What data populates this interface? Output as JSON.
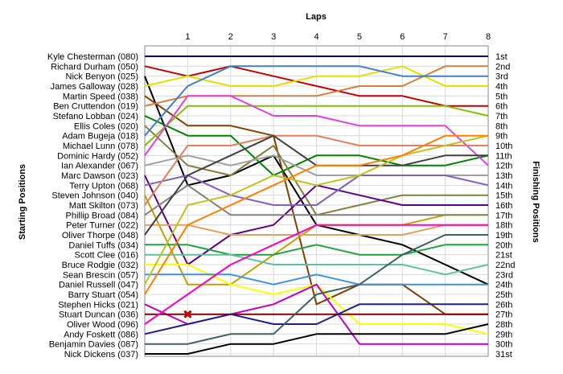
{
  "chart_data": {
    "type": "line",
    "title": "",
    "xlabel": "Laps",
    "ylabel_left": "Starting Positions",
    "ylabel_right": "Finishing Positions",
    "x": [
      0,
      1,
      2,
      3,
      4,
      5,
      6,
      7,
      8
    ],
    "x_tick_labels": [
      "1",
      "2",
      "3",
      "4",
      "5",
      "6",
      "7",
      "8"
    ],
    "ylim": [
      1,
      31
    ],
    "y_inverted": true,
    "grid": true,
    "finishing_labels": [
      "1st",
      "2nd",
      "3rd",
      "4th",
      "5th",
      "6th",
      "7th",
      "8th",
      "9th",
      "10th",
      "11th",
      "12th",
      "13th",
      "14th",
      "15th",
      "16th",
      "17th",
      "18th",
      "19th",
      "20th",
      "21st",
      "22nd",
      "23rd",
      "24th",
      "25th",
      "26th",
      "27th",
      "28th",
      "29th",
      "30th",
      "31st"
    ],
    "series": [
      {
        "name": "Kyle Chesterman (080)",
        "color": "#000080",
        "values": [
          1,
          1,
          1,
          1,
          1,
          1,
          1,
          1,
          1
        ]
      },
      {
        "name": "Richard Durham (050)",
        "color": "#c00000",
        "values": [
          2,
          3,
          2,
          3,
          4,
          5,
          5,
          6,
          6
        ]
      },
      {
        "name": "Nick Benyon (025)",
        "color": "#000000",
        "values": [
          3,
          14,
          13,
          11,
          18,
          19,
          20,
          22,
          24
        ]
      },
      {
        "name": "James Galloway (028)",
        "color": "#e0e000",
        "values": [
          4,
          3,
          4,
          4,
          3,
          3,
          2,
          4,
          4
        ]
      },
      {
        "name": "Martin Speed (038)",
        "color": "#804000",
        "values": [
          5,
          8,
          8,
          9,
          26,
          24,
          24,
          27,
          27
        ]
      },
      {
        "name": "Ben Cruttendon (019)",
        "color": "#d08040",
        "values": [
          6,
          5,
          5,
          5,
          5,
          4,
          4,
          2,
          2
        ]
      },
      {
        "name": "Stefano Lobban (024)",
        "color": "#008000",
        "values": [
          7,
          9,
          9,
          13,
          11,
          11,
          12,
          12,
          11
        ]
      },
      {
        "name": "Ellis Coles (020)",
        "color": "#808040",
        "values": [
          8,
          12,
          13,
          10,
          17,
          16,
          15,
          15,
          15
        ]
      },
      {
        "name": "Adam Bugeja (018)",
        "color": "#4080c0",
        "values": [
          9,
          4,
          2,
          2,
          2,
          2,
          3,
          3,
          3
        ]
      },
      {
        "name": "Michael Lunn (078)",
        "color": "#80c000",
        "values": [
          10,
          6,
          6,
          6,
          6,
          6,
          6,
          6,
          7
        ]
      },
      {
        "name": "Dominic Hardy (052)",
        "color": "#e040e0",
        "values": [
          11,
          5,
          5,
          7,
          7,
          8,
          8,
          8,
          12
        ]
      },
      {
        "name": "Ian Alexander (067)",
        "color": "#a0a0a0",
        "values": [
          12,
          11,
          12,
          11,
          13,
          13,
          13,
          13,
          13
        ]
      },
      {
        "name": "Marc Dawson (023)",
        "color": "#600080",
        "values": [
          13,
          22,
          19,
          18,
          14,
          15,
          16,
          16,
          16
        ]
      },
      {
        "name": "Terry Upton (068)",
        "color": "#8060c0",
        "values": [
          14,
          13,
          15,
          16,
          16,
          13,
          13,
          13,
          14
        ]
      },
      {
        "name": "Steven Johnson (040)",
        "color": "#c0a000",
        "values": [
          15,
          24,
          24,
          21,
          18,
          18,
          18,
          17,
          17
        ]
      },
      {
        "name": "Matt Skilton (073)",
        "color": "#e08060",
        "values": [
          16,
          10,
          10,
          9,
          9,
          10,
          10,
          10,
          10
        ]
      },
      {
        "name": "Phillip Broad (084)",
        "color": "#808080",
        "values": [
          17,
          14,
          17,
          17,
          17,
          17,
          17,
          17,
          17
        ]
      },
      {
        "name": "Peter Turner (022)",
        "color": "#e0a060",
        "values": [
          18,
          18,
          19,
          19,
          19,
          19,
          19,
          18,
          18
        ]
      },
      {
        "name": "Oliver Thorpe (048)",
        "color": "#404040",
        "values": [
          19,
          13,
          11,
          9,
          12,
          12,
          12,
          11,
          11
        ]
      },
      {
        "name": "Daniel Tuffs (034)",
        "color": "#20a040",
        "values": [
          20,
          20,
          21,
          21,
          20,
          21,
          21,
          20,
          20
        ]
      },
      {
        "name": "Scott Clee (016)",
        "color": "#60c0a0",
        "values": [
          21,
          21,
          21,
          22,
          22,
          22,
          22,
          23,
          22
        ]
      },
      {
        "name": "Bruce Rodgie (032)",
        "color": "#ffff00",
        "values": [
          22,
          22,
          24,
          25,
          24,
          28,
          28,
          28,
          29
        ]
      },
      {
        "name": "Sean Brescin (057)",
        "color": "#4090e0",
        "values": [
          23,
          23,
          23,
          24,
          23,
          24,
          24,
          24,
          24
        ]
      },
      {
        "name": "Daniel Russell (047)",
        "color": "#c0c020",
        "values": [
          24,
          16,
          15,
          13,
          14,
          13,
          11,
          10,
          9
        ]
      },
      {
        "name": "Barry Stuart (054)",
        "color": "#ff8000",
        "values": [
          25,
          18,
          16,
          14,
          12,
          12,
          11,
          9,
          9
        ]
      },
      {
        "name": "Stephen Hicks (021)",
        "color": "#c000c0",
        "values": [
          26,
          28,
          27,
          26,
          24,
          30,
          30,
          30,
          30
        ]
      },
      {
        "name": "Stuart Duncan (036)",
        "color": "#800000",
        "values": [
          27,
          27,
          27,
          27,
          27,
          27,
          27,
          27,
          27
        ]
      },
      {
        "name": "Oliver Wood (096)",
        "color": "#ff00c0",
        "values": [
          28,
          25,
          22,
          20,
          18,
          18,
          18,
          18,
          18
        ]
      },
      {
        "name": "Andy Foskett (086)",
        "color": "#202080",
        "values": [
          29,
          28,
          27,
          28,
          28,
          26,
          26,
          26,
          26
        ]
      },
      {
        "name": "Benjamin Davies (087)",
        "color": "#406060",
        "values": [
          30,
          30,
          29,
          29,
          25,
          24,
          21,
          19,
          19
        ]
      },
      {
        "name": "Nick Dickens (037)",
        "color": "#000000",
        "values": [
          31,
          31,
          30,
          30,
          29,
          29,
          29,
          29,
          28
        ]
      }
    ],
    "annotations": [
      {
        "type": "retired-marker",
        "series": "Stuart Duncan (036)",
        "x": 1,
        "y": 27,
        "color": "#c00000"
      }
    ]
  }
}
